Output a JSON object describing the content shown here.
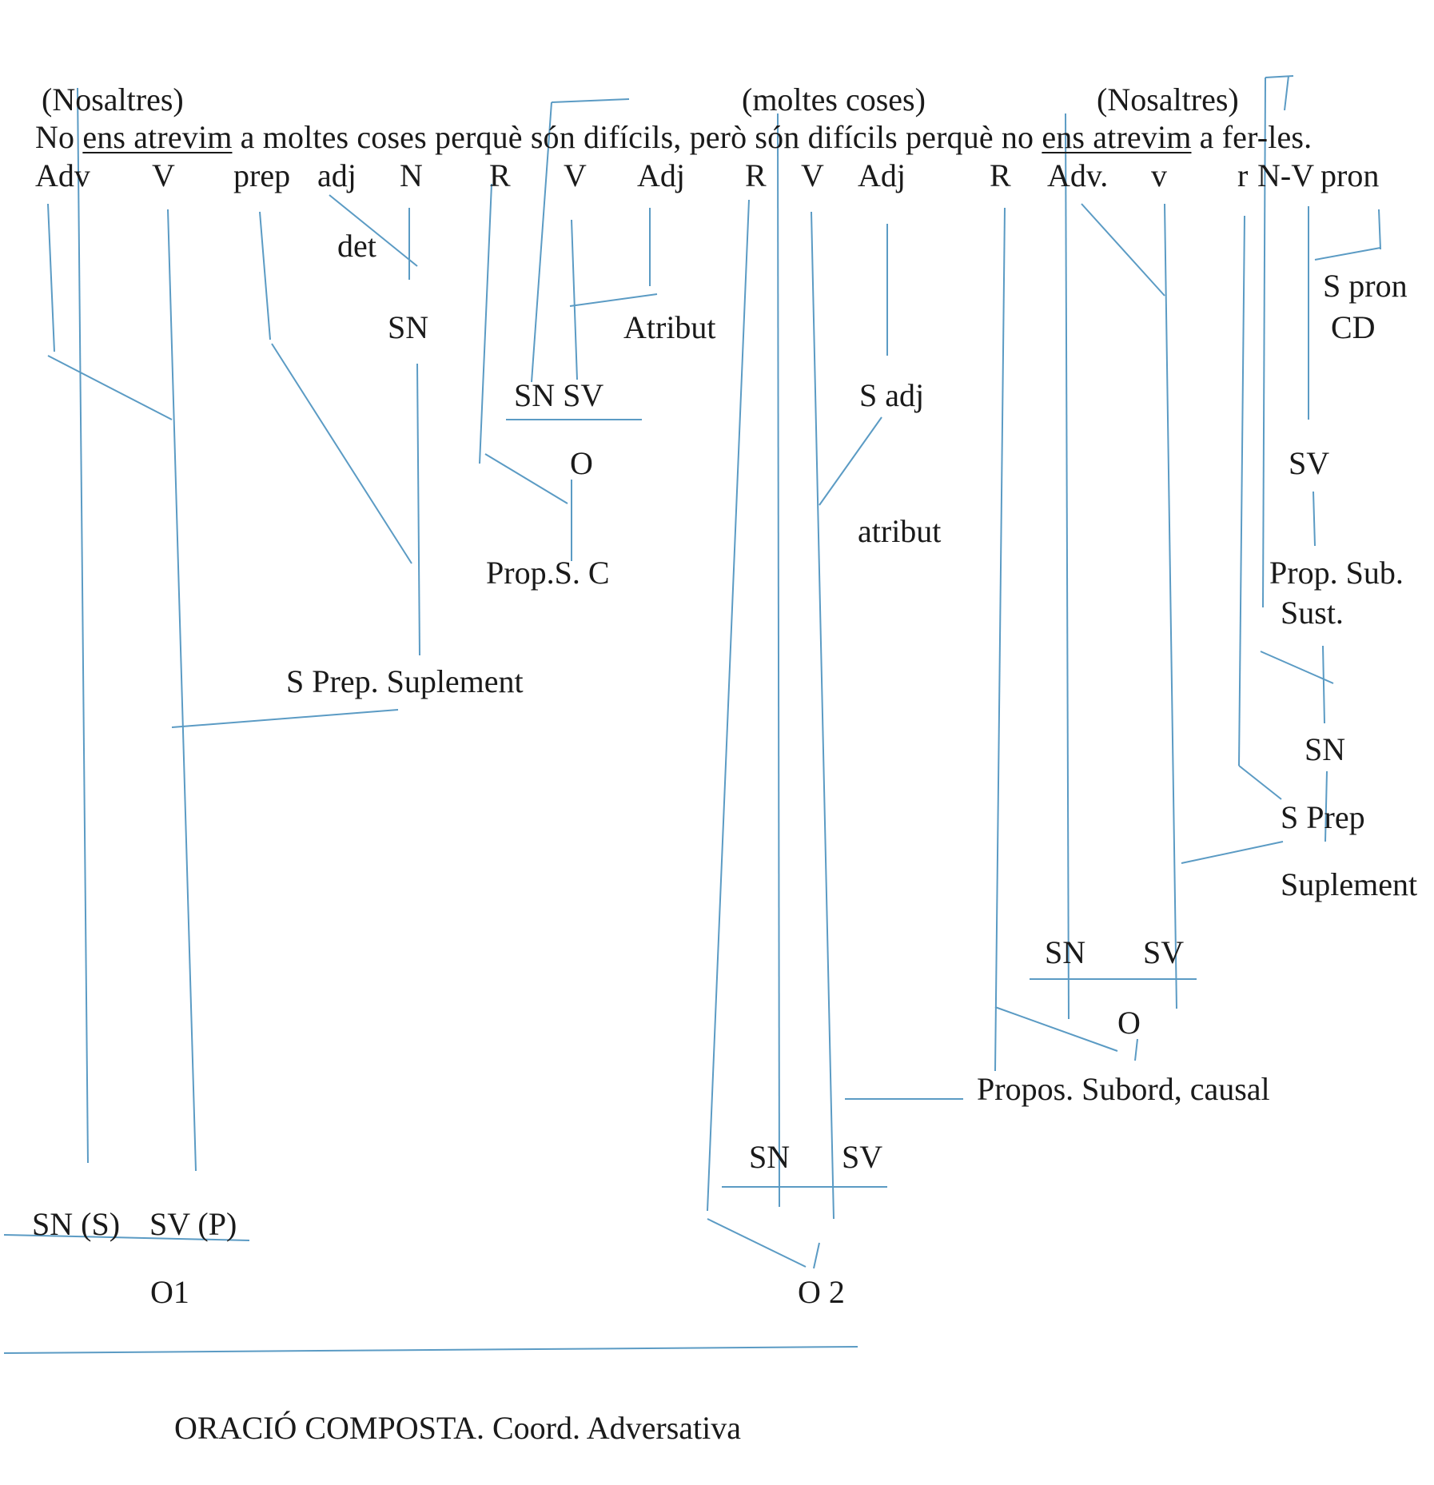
{
  "sentence": {
    "implied_subject_1": "(Nosaltres)",
    "implied_object": "(moltes coses)",
    "implied_subject_2": "(Nosaltres)",
    "w_no1": "No",
    "w_ens_atrevim1": "ens atrevim",
    "w_segment1": "a moltes coses perquè són difícils, però són difícils perquè no",
    "w_ens_atrevim2": "ens atrevim",
    "w_segment2": "a fer-les."
  },
  "pos_tags": [
    "Adv",
    "V",
    "prep",
    "adj",
    "N",
    "R",
    "V",
    "Adj",
    "R",
    "V",
    "Adj",
    "R",
    "Adv.",
    "v",
    "r",
    "N-V",
    "pron"
  ],
  "labels": {
    "det": "det",
    "sn_1": "SN",
    "atribut_1": "Atribut",
    "sn_sv_1": "SN SV",
    "o_1": "O",
    "prop_sc": "Prop.S. C",
    "s_adj": "S adj",
    "atribut_2": "atribut",
    "s_pron": "S pron",
    "cd": "CD",
    "sv_right": "SV",
    "prop_sub": "Prop. Sub.",
    "sust": "Sust.",
    "sn_right": "SN",
    "s_prep_right": "S Prep",
    "suplement_right": "Suplement",
    "s_prep_suplement": "S Prep. Suplement",
    "sn_2": "SN",
    "sv_2": "SV",
    "o_2": "O",
    "propos_causal": "Propos. Subord, causal",
    "sn_3": "SN",
    "sv_3": "SV",
    "sn_s": "SN (S)",
    "sv_p": "SV (P)",
    "o1": "O1",
    "o2": "O 2"
  },
  "caption": "ORACIÓ COMPOSTA. Coord. Adversativa",
  "colors": {
    "line": "#5b9bc4",
    "text": "#1a1a1a"
  }
}
